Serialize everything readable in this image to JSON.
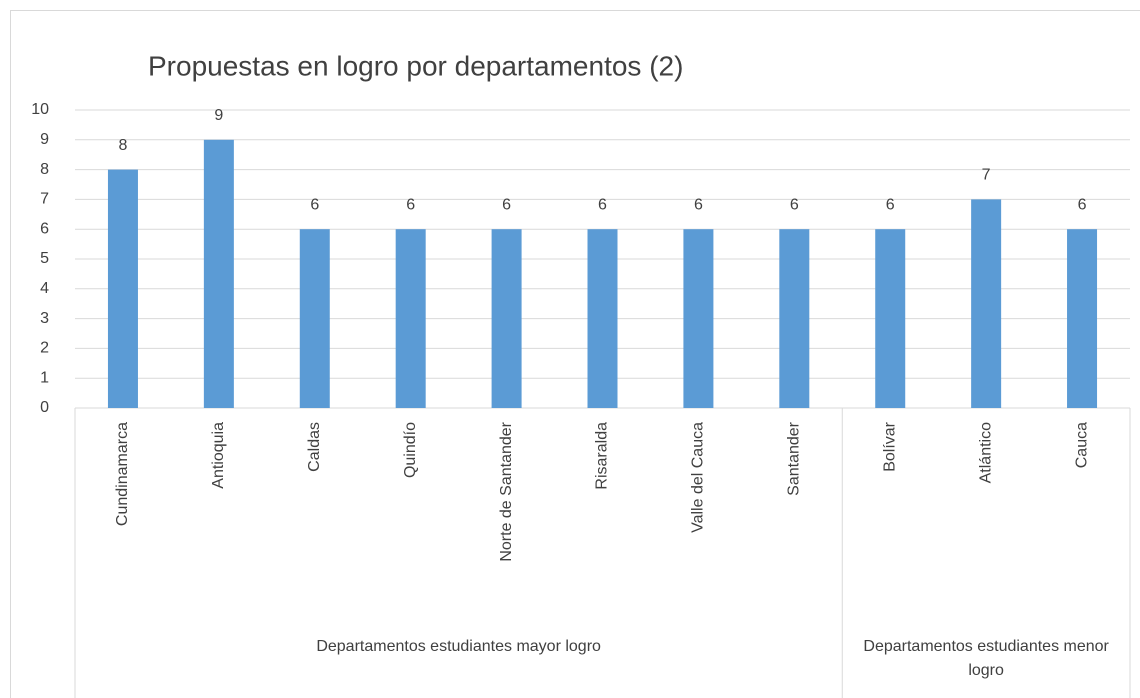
{
  "chart_data": {
    "type": "bar",
    "title": "Propuestas en logro por departamentos (2)",
    "categories": [
      "Cundinamarca",
      "Antioquia",
      "Caldas",
      "Quindío",
      "Norte de Santander",
      "Risaralda",
      "Valle del Cauca",
      "Santander",
      "Bolívar",
      "Atlántico",
      "Cauca"
    ],
    "values": [
      8,
      9,
      6,
      6,
      6,
      6,
      6,
      6,
      6,
      7,
      6
    ],
    "groups": [
      {
        "name": "Departamentos estudiantes mayor logro",
        "count": 8
      },
      {
        "name": "Departamentos estudiantes menor logro",
        "count": 3
      }
    ],
    "color": "#5b9bd5",
    "ylim": [
      0,
      10
    ],
    "yticks": [
      0,
      1,
      2,
      3,
      4,
      5,
      6,
      7,
      8,
      9,
      10
    ],
    "grid": true
  }
}
